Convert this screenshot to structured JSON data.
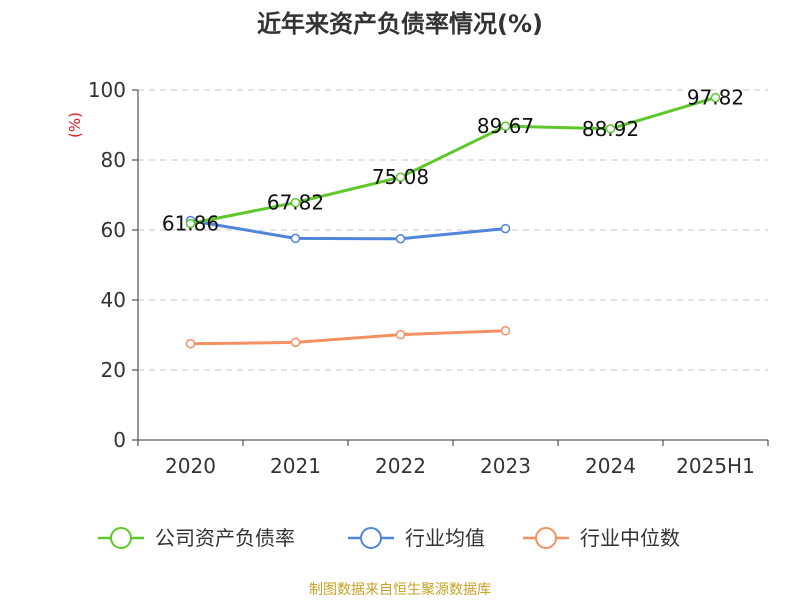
{
  "chart_data": {
    "type": "line",
    "title": "近年来资产负债率情况(%)",
    "unit_label": "(%)",
    "categories": [
      "2020",
      "2021",
      "2022",
      "2023",
      "2024",
      "2025H1"
    ],
    "y_ticks": [
      "0",
      "20",
      "40",
      "60",
      "80",
      "100"
    ],
    "ylim": [
      0,
      100
    ],
    "grid": true,
    "legend_position": "bottom",
    "series": [
      {
        "name": "公司资产负债率",
        "color": "#5fc72c",
        "values": [
          61.86,
          67.82,
          75.08,
          89.67,
          88.92,
          97.82
        ],
        "labels": [
          "61.86",
          "67.82",
          "75.08",
          "89.67",
          "88.92",
          "97.82"
        ]
      },
      {
        "name": "行业均值",
        "color": "#4f86d9",
        "values": [
          62.7,
          57.6,
          57.5,
          60.4,
          null,
          null
        ]
      },
      {
        "name": "行业中位数",
        "color": "#f59062",
        "values": [
          27.5,
          27.9,
          30.1,
          31.2,
          null,
          null
        ]
      }
    ]
  },
  "source": "制图数据来自恒生聚源数据库"
}
